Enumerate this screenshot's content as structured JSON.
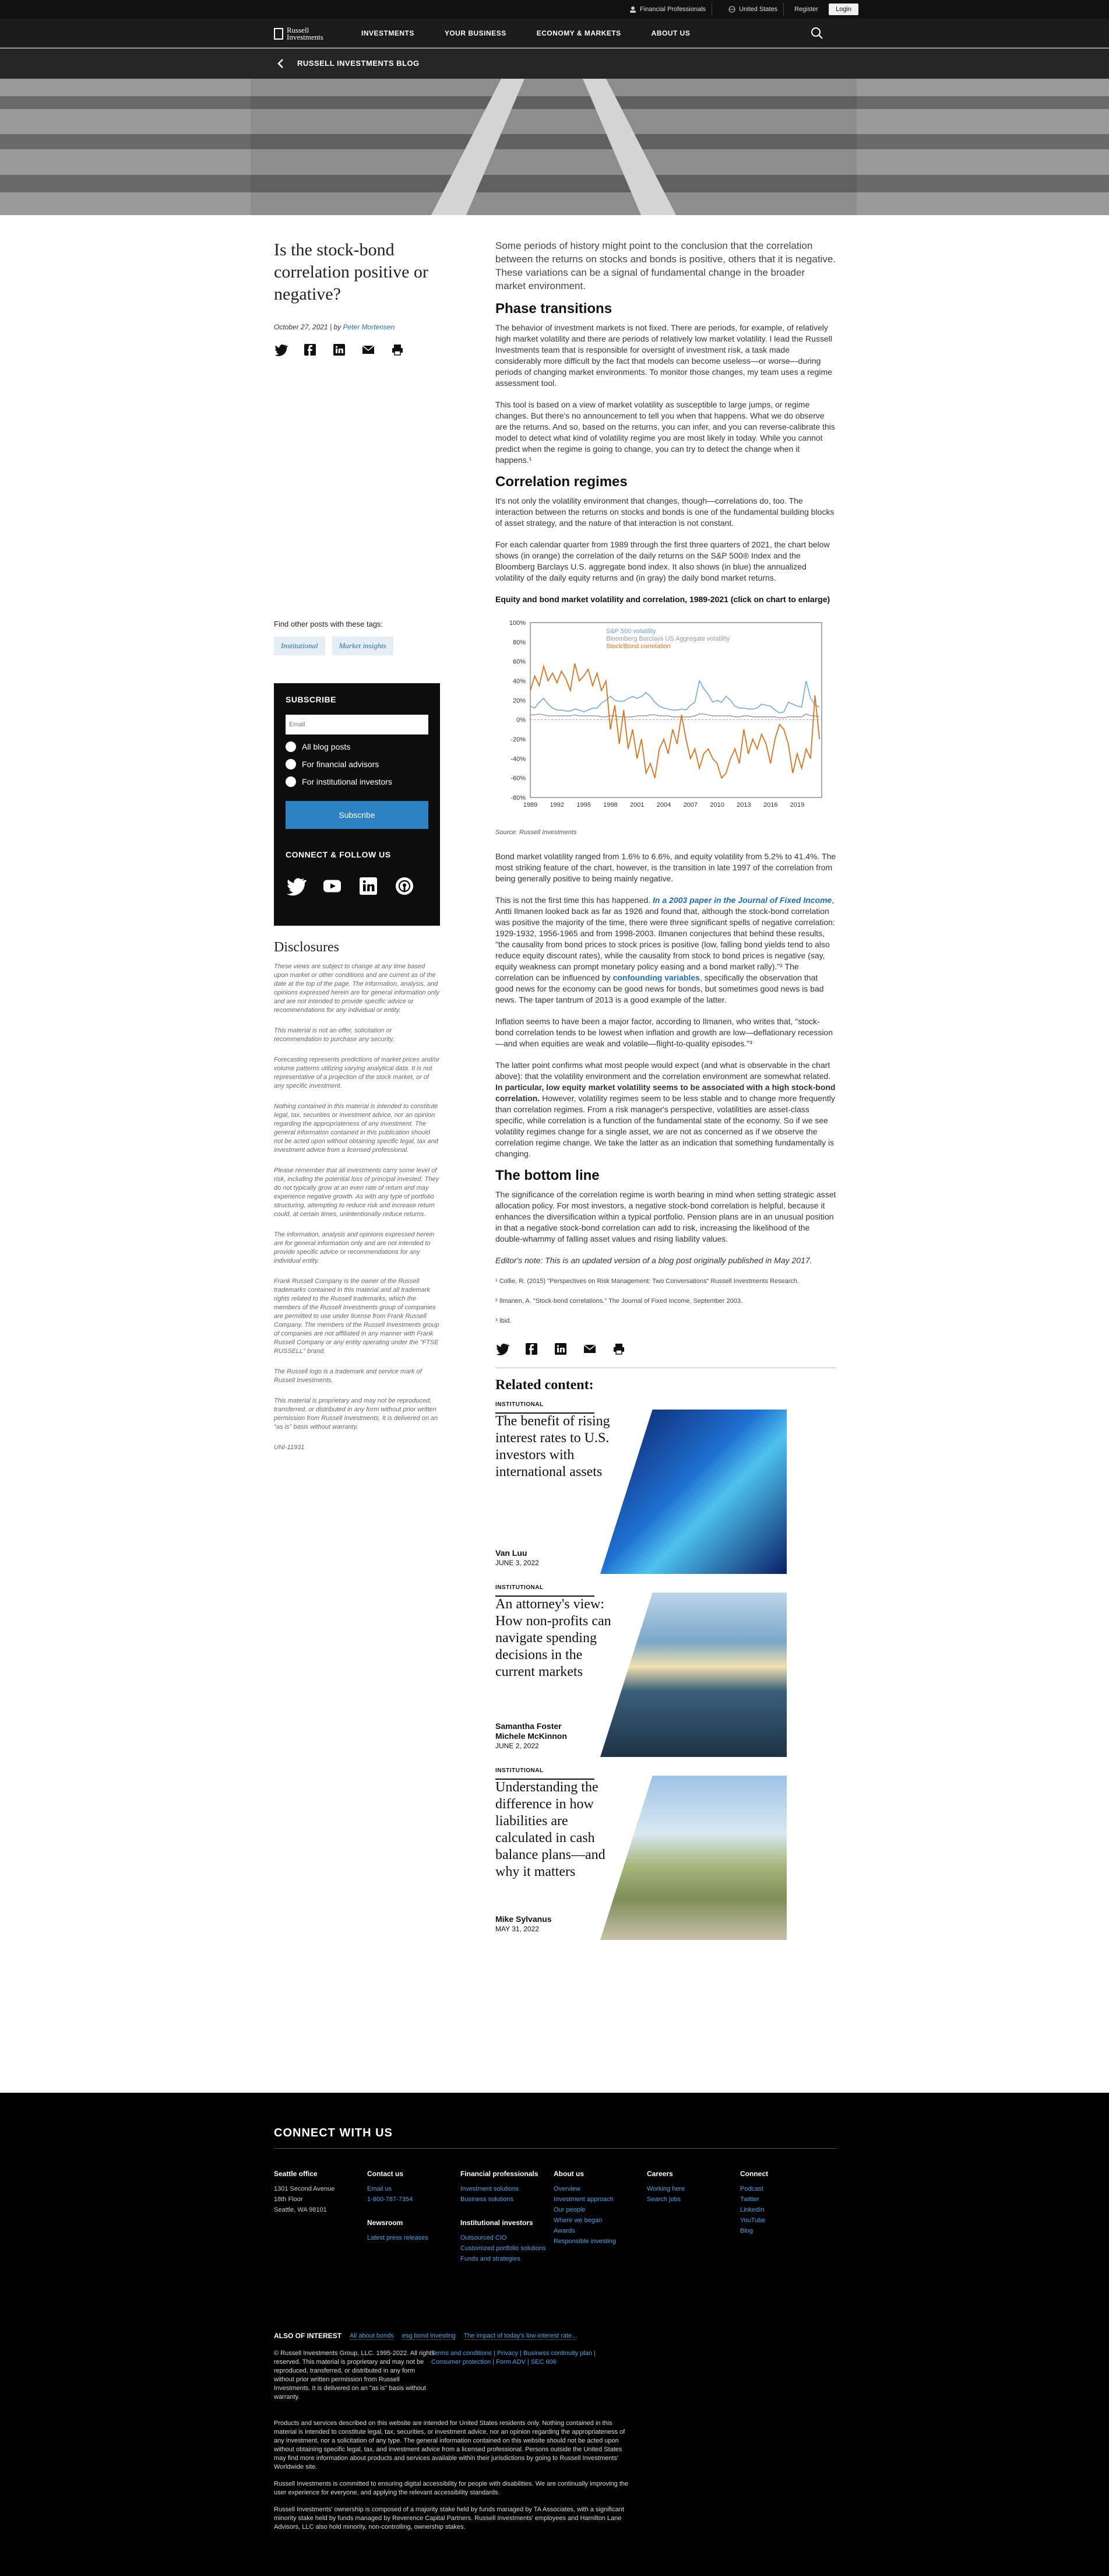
{
  "topbar": {
    "fin_prof": "Financial Professionals",
    "country": "United States",
    "register": "Register",
    "login": "Login"
  },
  "nav": {
    "logo_line1": "Russell",
    "logo_line2": "Investments",
    "items": [
      "INVESTMENTS",
      "YOUR BUSINESS",
      "ECONOMY & MARKETS",
      "ABOUT US"
    ]
  },
  "blogbar": {
    "title": "RUSSELL INVESTMENTS BLOG"
  },
  "article": {
    "title": "Is the stock-bond correlation positive or negative?",
    "date": "October 27, 2021",
    "by": "| by",
    "author": "Peter Mortensen",
    "lead": "Some periods of history might point to the conclusion that the correlation between the returns on stocks and bonds is positive, others that it is negative. These variations can be a signal of fundamental change in the broader market environment.",
    "h_phase": "Phase transitions",
    "p1": "The behavior of investment markets is not fixed. There are periods, for example, of relatively high market volatility and there are periods of relatively low market volatility. I lead the Russell Investments team that is responsible for oversight of investment risk, a task made considerably more difficult by the fact that models can become useless—or worse—during periods of changing market environments. To monitor those changes, my team uses a regime assessment tool.",
    "p2": "This tool is based on a view of market volatility as susceptible to large jumps, or regime changes. But there's no announcement to tell you when that happens. What we do observe are the returns. And so, based on the returns, you can infer, and you can reverse-calibrate this model to detect what kind of volatility regime you are most likely in today. While you cannot predict when the regime is going to change, you can try to detect the change when it happens.¹",
    "h_corr": "Correlation regimes",
    "p3": "It's not only the volatility environment that changes, though—correlations do, too. The interaction between the returns on stocks and bonds is one of the fundamental building blocks of asset strategy, and the nature of that interaction is not constant.",
    "p4": "For each calendar quarter from 1989 through the first three quarters of 2021, the chart below shows (in orange) the correlation of the daily returns on the S&P 500® Index and the Bloomberg Barclays U.S. aggregate bond index. It also shows (in blue) the annualized volatility of the daily equity returns and (in gray) the daily bond market returns.",
    "chart_title": "Equity and bond market volatility and correlation, 1989-2021 (click on chart to enlarge)",
    "source": "Source: Russell Investments",
    "p5": "Bond market volatility ranged from 1.6% to 6.6%, and equity volatility from 5.2% to 41.4%. The most striking feature of the chart, however, is the transition in late 1997 of the correlation from being generally positive to being mainly negative.",
    "p6a": "This is not the first time this has happened.",
    "p6link": "In a 2003 paper in the Journal of Fixed Income",
    "p6b": ", Antti Ilmanen looked back as far as 1926 and found that, although the stock-bond correlation was positive the majority of the time, there were three significant spells of negative correlation: 1929-1932, 1956-1965 and from 1998-2003. Ilmanen conjectures that behind these results, \"the causality from bond prices to stock prices is positive (low, falling bond yields tend to also reduce equity discount rates), while the causality from stock to bond prices is negative (say, equity weakness can prompt monetary policy easing and a bond market rally).\"² The correlation can be influenced by",
    "p6link2": "confounding variables",
    "p6c": ", specifically the observation that good news for the economy can be good news for bonds, but sometimes good news is bad news. The taper tantrum of 2013 is a good example of the latter.",
    "p7": "Inflation seems to have been a major factor, according to Ilmanen, who writes that, \"stock-bond correlation tends to be lowest when inflation and growth are low—deflationary recession—and when equities are weak and volatile—flight-to-quality episodes.\"³",
    "p8a": "The latter point confirms what most people would expect (and what is observable in the chart above): that the volatility environment and the correlation environment are somewhat related.",
    "p8b": "In particular, low equity market volatility seems to be associated with a high stock-bond correlation.",
    "p8c": "However, volatility regimes seem to be less stable and to change more frequently than correlation regimes. From a risk manager's perspective, volatilities are asset-class specific, while correlation is a function of the fundamental state of the economy. So if we see volatility regimes change for a single asset, we are not as concerned as if we observe the correlation regime change. We take the latter as an indication that something fundamentally is changing.",
    "h_bottom": "The bottom line",
    "p9": "The significance of the correlation regime is worth bearing in mind when setting strategic asset allocation policy. For most investors, a negative stock-bond correlation is helpful, because it enhances the diversification within a typical portfolio. Pension plans are in an unusual position in that a negative stock-bond correlation can add to risk, increasing the likelihood of the double-whammy of falling asset values and rising liability values.",
    "editor": "Editor's note: This is an updated version of a blog post originally published in May 2017.",
    "fn1": "¹ Collie, R. (2015) \"Perspectives on Risk Management: Two Conversations\" Russell Investments Research.",
    "fn2": "² Ilmanen, A. \"Stock-bond correlations.\" The Journal of Fixed Income, September 2003.",
    "fn3": "³ Ibid."
  },
  "tags": {
    "heading": "Find other posts with these tags:",
    "items": [
      "Institutional",
      "Market insights"
    ]
  },
  "subscribe": {
    "heading": "SUBSCRIBE",
    "email_placeholder": "Email",
    "options": [
      "All blog posts",
      "For financial advisors",
      "For institutional investors"
    ],
    "button": "Subscribe",
    "connect": "CONNECT & FOLLOW US"
  },
  "disclosures": {
    "heading": "Disclosures",
    "paras": [
      "These views are subject to change at any time based upon market or other conditions and are current as of the date at the top of the page. The information, analysis, and opinions expressed herein are for general information only and are not intended to provide specific advice or recommendations for any individual or entity.",
      "This material is not an offer, solicitation or recommendation to purchase any security.",
      "Forecasting represents predictions of market prices and/or volume patterns utilizing varying analytical data. It is not representative of a projection of the stock market, or of any specific investment.",
      "Nothing contained in this material is intended to constitute legal, tax, securities or investment advice, nor an opinion regarding the appropriateness of any investment. The general information contained in this publication should not be acted upon without obtaining specific legal, tax and investment advice from a licensed professional.",
      "Please remember that all investments carry some level of risk, including the potential loss of principal invested. They do not typically grow at an even rate of return and may experience negative growth. As with any type of portfolio structuring, attempting to reduce risk and increase return could, at certain times, unintentionally reduce returns.",
      "The information, analysis and opinions expressed herein are for general information only and are not intended to provide specific advice or recommendations for any individual entity.",
      "Frank Russell Company is the owner of the Russell trademarks contained in this material and all trademark rights related to the Russell trademarks, which the members of the Russell Investments group of companies are permitted to use under license from Frank Russell Company. The members of the Russell Investments group of companies are not affiliated in any manner with Frank Russell Company or any entity operating under the \"FTSE RUSSELL\" brand.",
      "The Russell logo is a trademark and service mark of Russell Investments.",
      "This material is proprietary and may not be reproduced, transferred, or distributed in any form without prior written permission from Russell Investments. It is delivered on an \"as is\" basis without warranty.",
      "UNI-11931"
    ]
  },
  "related": {
    "heading": "Related content:",
    "items": [
      {
        "tag": "INSTITUTIONAL",
        "title": "The benefit of rising interest rates to U.S. investors with international assets",
        "author": "Van Luu",
        "date": "JUNE 3, 2022"
      },
      {
        "tag": "INSTITUTIONAL",
        "title": "An attorney's view: How non-profits can navigate spending decisions in the current markets",
        "author": "Samantha Foster\nMichele McKinnon",
        "date": "JUNE 2, 2022"
      },
      {
        "tag": "INSTITUTIONAL",
        "title": "Understanding the difference in how liabilities are calculated in cash balance plans—and why it matters",
        "author": "Mike Sylvanus",
        "date": "MAY 31, 2022"
      }
    ]
  },
  "footer": {
    "heading": "CONNECT WITH US",
    "cols": [
      {
        "h": "Seattle office",
        "lines": [
          "1301 Second Avenue",
          "18th Floor",
          "Seattle, WA 98101"
        ],
        "links": []
      },
      {
        "h": "Contact us",
        "lines": [],
        "links": [
          "Email us",
          "1-800-787-7354"
        ],
        "h2": "Newsroom",
        "links2": [
          "Latest press releases"
        ]
      },
      {
        "h": "Financial professionals",
        "lines": [],
        "links": [
          "Investment solutions",
          "Business solutions"
        ],
        "h2": "Institutional investors",
        "links2": [
          "Outsourced CIO",
          "Customized portfolio solutions",
          "Funds and strategies"
        ]
      },
      {
        "h": "About us",
        "lines": [],
        "links": [
          "Overview",
          "Investment approach",
          "Our people",
          "Where we began",
          "Awards",
          "Responsible investing"
        ]
      },
      {
        "h": "Careers",
        "lines": [],
        "links": [
          "Working here",
          "Search jobs"
        ]
      },
      {
        "h": "Connect",
        "lines": [],
        "links": [
          "Podcast",
          "Twitter",
          "LinkedIn",
          "YouTube",
          "Blog"
        ]
      }
    ],
    "also_label": "ALSO OF INTEREST",
    "also": [
      "All about bonds",
      "esg bond investing",
      "The impact of today's low-interest rate..."
    ],
    "copyright": "© Russell Investments Group, LLC. 1995-2022. All rights reserved. This material is proprietary and may not be reproduced, transferred, or distributed in any form without prior written permission from Russell Investments. It is delivered on an \"as is\" basis without warranty.",
    "links_line1": "Terms and conditions | Privacy | Business continuity plan |",
    "links_line2": "Consumer protection | Form ADV | SEC 606",
    "legal1": "Products and services described on this website are intended for United States residents only. Nothing contained in this material is intended to constitute legal, tax, securities, or investment advice, nor an opinion regarding the appropriateness of any investment, nor a solicitation of any type. The general information contained on this website should not be acted upon without obtaining specific legal, tax, and investment advice from a licensed professional. Persons outside the United States may find more information about products and services available within their jurisdictions by going to Russell Investments' Worldwide site.",
    "legal2": "Russell Investments is committed to ensuring digital accessibility for people with disabilities. We are continually improving the user experience for everyone, and applying the relevant accessibility standards.",
    "legal3": "Russell Investments' ownership is composed of a majority stake held by funds managed by TA Associates, with a significant minority stake held by funds managed by Reverence Capital Partners. Russell Investments' employees and Hamilton Lane Advisors, LLC also hold minority, non-controlling, ownership stakes."
  },
  "chart_data": {
    "type": "line",
    "title": "",
    "ylim": [
      -80,
      100
    ],
    "yticks": [
      "100%",
      "80%",
      "60%",
      "40%",
      "20%",
      "0%",
      "-20%",
      "-40%",
      "-60%",
      "-80%"
    ],
    "xticks": [
      "1989",
      "1992",
      "1995",
      "1998",
      "2001",
      "2004",
      "2007",
      "2010",
      "2013",
      "2016",
      "2019"
    ],
    "x": [
      1989,
      1989.5,
      1990,
      1990.5,
      1991,
      1991.5,
      1992,
      1992.5,
      1993,
      1993.5,
      1994,
      1994.5,
      1995,
      1995.5,
      1996,
      1996.5,
      1997,
      1997.5,
      1998,
      1998.5,
      1999,
      1999.5,
      2000,
      2000.5,
      2001,
      2001.5,
      2002,
      2002.5,
      2003,
      2003.5,
      2004,
      2004.5,
      2005,
      2005.5,
      2006,
      2006.5,
      2007,
      2007.5,
      2008,
      2008.5,
      2009,
      2009.5,
      2010,
      2010.5,
      2011,
      2011.5,
      2012,
      2012.5,
      2013,
      2013.5,
      2014,
      2014.5,
      2015,
      2015.5,
      2016,
      2016.5,
      2017,
      2017.5,
      2018,
      2018.5,
      2019,
      2019.5,
      2020,
      2020.5,
      2021,
      2021.5
    ],
    "series": [
      {
        "name": "S&P 500 volatility",
        "color": "#6aa5de",
        "values": [
          14,
          12,
          18,
          22,
          16,
          12,
          10,
          10,
          9,
          9,
          11,
          10,
          8,
          10,
          12,
          12,
          17,
          20,
          24,
          20,
          19,
          19,
          22,
          24,
          22,
          24,
          28,
          24,
          18,
          14,
          12,
          11,
          10,
          10,
          11,
          10,
          15,
          18,
          40,
          32,
          26,
          18,
          20,
          18,
          24,
          20,
          14,
          12,
          12,
          11,
          11,
          12,
          16,
          15,
          14,
          10,
          7,
          8,
          18,
          16,
          14,
          13,
          40,
          22,
          15,
          13
        ]
      },
      {
        "name": "Bloomberg Barclays US Aggregate volatility",
        "color": "#999999",
        "values": [
          5,
          5,
          6,
          5,
          4,
          4,
          4,
          4,
          4,
          4,
          5,
          4,
          4,
          4,
          4,
          4,
          3,
          3,
          4,
          4,
          3,
          3,
          3,
          3,
          4,
          4,
          4,
          5,
          5,
          4,
          4,
          4,
          3,
          3,
          3,
          3,
          3,
          4,
          6,
          6,
          5,
          4,
          4,
          4,
          4,
          4,
          3,
          3,
          4,
          4,
          3,
          3,
          3,
          3,
          3,
          3,
          2,
          2,
          3,
          3,
          3,
          3,
          6,
          4,
          4,
          3
        ]
      },
      {
        "name": "Stock/Bond correlation",
        "color": "#d9731f",
        "values": [
          30,
          45,
          35,
          55,
          40,
          48,
          38,
          50,
          42,
          30,
          58,
          40,
          45,
          52,
          35,
          48,
          30,
          40,
          -10,
          15,
          -25,
          10,
          -30,
          -10,
          -40,
          -20,
          -55,
          -45,
          -60,
          -30,
          -20,
          -35,
          -10,
          -25,
          5,
          -20,
          -40,
          -30,
          -50,
          -35,
          -30,
          -40,
          -45,
          -60,
          -55,
          -40,
          -30,
          -45,
          -10,
          -35,
          -20,
          -30,
          -15,
          -25,
          -45,
          -20,
          -5,
          -10,
          -25,
          -55,
          -35,
          -50,
          -30,
          -40,
          25,
          -20
        ]
      }
    ]
  }
}
